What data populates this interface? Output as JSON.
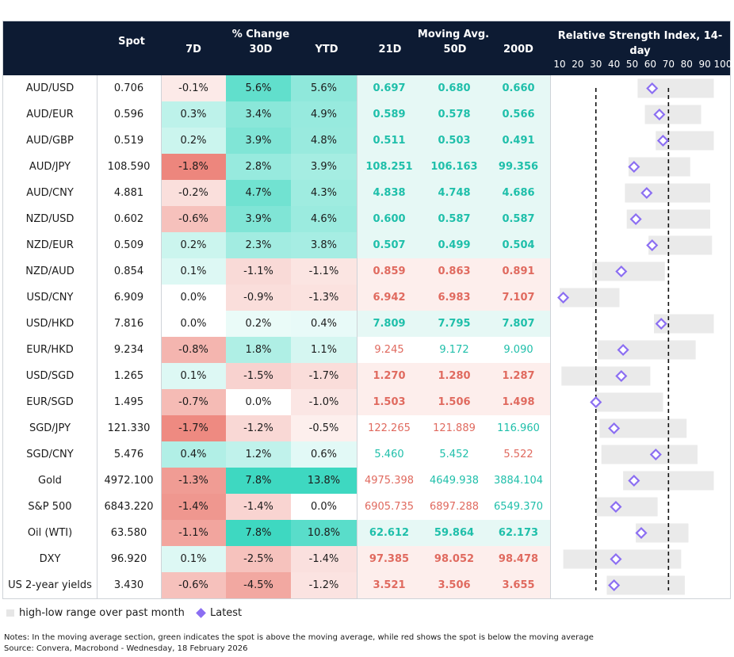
{
  "header": {
    "spot": "Spot",
    "pct_change": "% Change",
    "d7": "7D",
    "d30": "30D",
    "ytd": "YTD",
    "moving_avg": "Moving Avg.",
    "ma21": "21D",
    "ma50": "50D",
    "ma200": "200D",
    "rsi_title_1": "Relative Strength Index, 14-",
    "rsi_title_2": "day",
    "rsi_ticks": [
      "10",
      "20",
      "30",
      "40",
      "50",
      "60",
      "70",
      "80",
      "90",
      "100"
    ]
  },
  "colors": {
    "header_bg": "#0d1b33",
    "green_text": "#1fbfaa",
    "red_text": "#e06a5f",
    "marker": "#8b6ef2",
    "range_bar": "#eaeaea"
  },
  "rows": [
    {
      "name": "AUD/USD",
      "spot": "0.706",
      "d7": "-0.1%",
      "d30": "5.6%",
      "ytd": "5.6%",
      "ma21": "0.697",
      "ma50": "0.680",
      "ma200": "0.660",
      "ma_colors": [
        "g",
        "g",
        "g"
      ],
      "ma_bold": true
    },
    {
      "name": "AUD/EUR",
      "spot": "0.596",
      "d7": "0.3%",
      "d30": "3.4%",
      "ytd": "4.9%",
      "ma21": "0.589",
      "ma50": "0.578",
      "ma200": "0.566",
      "ma_colors": [
        "g",
        "g",
        "g"
      ],
      "ma_bold": true
    },
    {
      "name": "AUD/GBP",
      "spot": "0.519",
      "d7": "0.2%",
      "d30": "3.9%",
      "ytd": "4.8%",
      "ma21": "0.511",
      "ma50": "0.503",
      "ma200": "0.491",
      "ma_colors": [
        "g",
        "g",
        "g"
      ],
      "ma_bold": true
    },
    {
      "name": "AUD/JPY",
      "spot": "108.590",
      "d7": "-1.8%",
      "d30": "2.8%",
      "ytd": "3.9%",
      "ma21": "108.251",
      "ma50": "106.163",
      "ma200": "99.356",
      "ma_colors": [
        "g",
        "g",
        "g"
      ],
      "ma_bold": true
    },
    {
      "name": "AUD/CNY",
      "spot": "4.881",
      "d7": "-0.2%",
      "d30": "4.7%",
      "ytd": "4.3%",
      "ma21": "4.838",
      "ma50": "4.748",
      "ma200": "4.686",
      "ma_colors": [
        "g",
        "g",
        "g"
      ],
      "ma_bold": true
    },
    {
      "name": "NZD/USD",
      "spot": "0.602",
      "d7": "-0.6%",
      "d30": "3.9%",
      "ytd": "4.6%",
      "ma21": "0.600",
      "ma50": "0.587",
      "ma200": "0.587",
      "ma_colors": [
        "g",
        "g",
        "g"
      ],
      "ma_bold": true
    },
    {
      "name": "NZD/EUR",
      "spot": "0.509",
      "d7": "0.2%",
      "d30": "2.3%",
      "ytd": "3.8%",
      "ma21": "0.507",
      "ma50": "0.499",
      "ma200": "0.504",
      "ma_colors": [
        "g",
        "g",
        "g"
      ],
      "ma_bold": true
    },
    {
      "name": "NZD/AUD",
      "spot": "0.854",
      "d7": "0.1%",
      "d30": "-1.1%",
      "ytd": "-1.1%",
      "ma21": "0.859",
      "ma50": "0.863",
      "ma200": "0.891",
      "ma_colors": [
        "r",
        "r",
        "r"
      ],
      "ma_bold": true
    },
    {
      "name": "USD/CNY",
      "spot": "6.909",
      "d7": "0.0%",
      "d30": "-0.9%",
      "ytd": "-1.3%",
      "ma21": "6.942",
      "ma50": "6.983",
      "ma200": "7.107",
      "ma_colors": [
        "r",
        "r",
        "r"
      ],
      "ma_bold": true
    },
    {
      "name": "USD/HKD",
      "spot": "7.816",
      "d7": "0.0%",
      "d30": "0.2%",
      "ytd": "0.4%",
      "ma21": "7.809",
      "ma50": "7.795",
      "ma200": "7.807",
      "ma_colors": [
        "g",
        "g",
        "g"
      ],
      "ma_bold": true
    },
    {
      "name": "EUR/HKD",
      "spot": "9.234",
      "d7": "-0.8%",
      "d30": "1.8%",
      "ytd": "1.1%",
      "ma21": "9.245",
      "ma50": "9.172",
      "ma200": "9.090",
      "ma_colors": [
        "r",
        "g",
        "g"
      ],
      "ma_bold": false
    },
    {
      "name": "USD/SGD",
      "spot": "1.265",
      "d7": "0.1%",
      "d30": "-1.5%",
      "ytd": "-1.7%",
      "ma21": "1.270",
      "ma50": "1.280",
      "ma200": "1.287",
      "ma_colors": [
        "r",
        "r",
        "r"
      ],
      "ma_bold": true
    },
    {
      "name": "EUR/SGD",
      "spot": "1.495",
      "d7": "-0.7%",
      "d30": "0.0%",
      "ytd": "-1.0%",
      "ma21": "1.503",
      "ma50": "1.506",
      "ma200": "1.498",
      "ma_colors": [
        "r",
        "r",
        "r"
      ],
      "ma_bold": true
    },
    {
      "name": "SGD/JPY",
      "spot": "121.330",
      "d7": "-1.7%",
      "d30": "-1.2%",
      "ytd": "-0.5%",
      "ma21": "122.265",
      "ma50": "121.889",
      "ma200": "116.960",
      "ma_colors": [
        "r",
        "r",
        "g"
      ],
      "ma_bold": false
    },
    {
      "name": "SGD/CNY",
      "spot": "5.476",
      "d7": "0.4%",
      "d30": "1.2%",
      "ytd": "0.6%",
      "ma21": "5.460",
      "ma50": "5.452",
      "ma200": "5.522",
      "ma_colors": [
        "g",
        "g",
        "r"
      ],
      "ma_bold": false
    },
    {
      "name": "Gold",
      "spot": "4972.100",
      "d7": "-1.3%",
      "d30": "7.8%",
      "ytd": "13.8%",
      "ma21": "4975.398",
      "ma50": "4649.938",
      "ma200": "3884.104",
      "ma_colors": [
        "r",
        "g",
        "g"
      ],
      "ma_bold": false
    },
    {
      "name": "S&P 500",
      "spot": "6843.220",
      "d7": "-1.4%",
      "d30": "-1.4%",
      "ytd": "0.0%",
      "ma21": "6905.735",
      "ma50": "6897.288",
      "ma200": "6549.370",
      "ma_colors": [
        "r",
        "r",
        "g"
      ],
      "ma_bold": false
    },
    {
      "name": "Oil (WTI)",
      "spot": "63.580",
      "d7": "-1.1%",
      "d30": "7.8%",
      "ytd": "10.8%",
      "ma21": "62.612",
      "ma50": "59.864",
      "ma200": "62.173",
      "ma_colors": [
        "g",
        "g",
        "g"
      ],
      "ma_bold": true
    },
    {
      "name": "DXY",
      "spot": "96.920",
      "d7": "0.1%",
      "d30": "-2.5%",
      "ytd": "-1.4%",
      "ma21": "97.385",
      "ma50": "98.052",
      "ma200": "98.478",
      "ma_colors": [
        "r",
        "r",
        "r"
      ],
      "ma_bold": true
    },
    {
      "name": "US 2-year yields",
      "spot": "3.430",
      "d7": "-0.6%",
      "d30": "-4.5%",
      "ytd": "-1.2%",
      "ma21": "3.521",
      "ma50": "3.506",
      "ma200": "3.655",
      "ma_colors": [
        "r",
        "r",
        "r"
      ],
      "ma_bold": true
    }
  ],
  "chart_data": {
    "type": "table",
    "title": "Relative Strength Index, 14-day",
    "xlim": [
      10,
      100
    ],
    "reference_lines": [
      30,
      70
    ],
    "series": [
      {
        "name": "high-low range over past month",
        "values": [
          [
            53,
            95
          ],
          [
            57,
            88
          ],
          [
            63,
            95
          ],
          [
            48,
            82
          ],
          [
            46,
            93
          ],
          [
            47,
            93
          ],
          [
            59,
            94
          ],
          [
            28,
            68
          ],
          [
            10,
            43
          ],
          [
            62,
            95
          ],
          [
            31,
            85
          ],
          [
            11,
            60
          ],
          [
            30,
            67
          ],
          [
            32,
            80
          ],
          [
            33,
            86
          ],
          [
            45,
            95
          ],
          [
            30,
            64
          ],
          [
            52,
            81
          ],
          [
            12,
            77
          ],
          [
            36,
            79
          ]
        ]
      },
      {
        "name": "Latest",
        "values": [
          61,
          65,
          67,
          51,
          58,
          52,
          61,
          44,
          12,
          66,
          45,
          44,
          30,
          40,
          63,
          51,
          41,
          55,
          41,
          40
        ]
      }
    ],
    "categories": [
      "AUD/USD",
      "AUD/EUR",
      "AUD/GBP",
      "AUD/JPY",
      "AUD/CNY",
      "NZD/USD",
      "NZD/EUR",
      "NZD/AUD",
      "USD/CNY",
      "USD/HKD",
      "EUR/HKD",
      "USD/SGD",
      "EUR/SGD",
      "SGD/JPY",
      "SGD/CNY",
      "Gold",
      "S&P 500",
      "Oil (WTI)",
      "DXY",
      "US 2-year yields"
    ]
  },
  "legend": {
    "range": "high-low range over past month",
    "latest": "Latest"
  },
  "notes": {
    "line1": "Notes: In the moving average section, green indicates the spot is above the moving average, while red shows the spot is below the moving average",
    "line2": "Source: Convera, Macrobond - Wednesday, 18 February 2026"
  }
}
